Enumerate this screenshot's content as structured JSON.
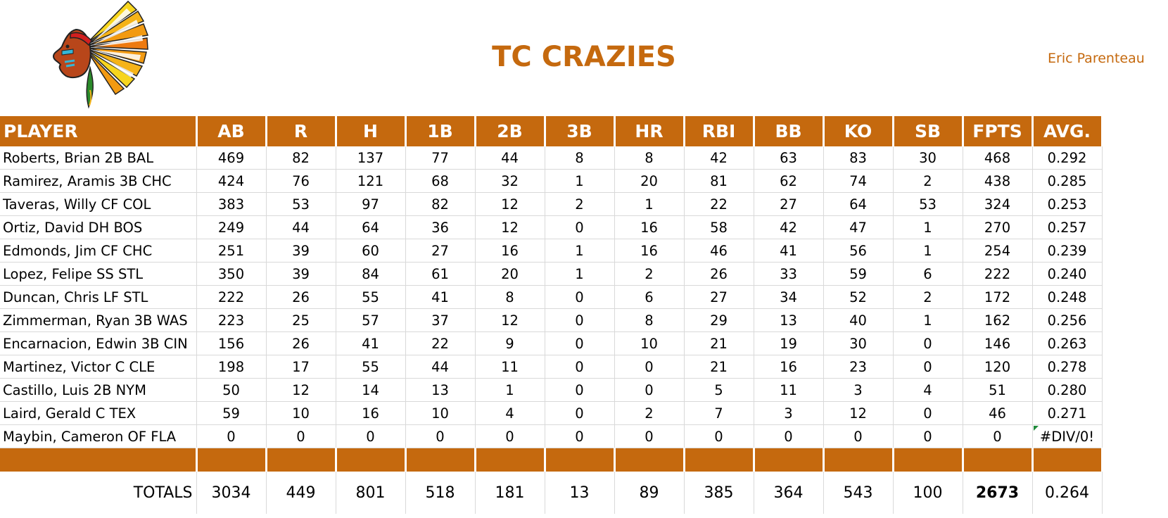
{
  "team": {
    "name": "TC CRAZIES",
    "owner": "Eric Parenteau",
    "accent_color": "#C5690E",
    "logo_icon": "chief-headdress-icon"
  },
  "table": {
    "headers": [
      "PLAYER",
      "AB",
      "R",
      "H",
      "1B",
      "2B",
      "3B",
      "HR",
      "RBI",
      "BB",
      "KO",
      "SB",
      "FPTS",
      "AVG."
    ],
    "rows": [
      [
        "Roberts, Brian 2B BAL",
        "469",
        "82",
        "137",
        "77",
        "44",
        "8",
        "8",
        "42",
        "63",
        "83",
        "30",
        "468",
        "0.292"
      ],
      [
        "Ramirez, Aramis 3B CHC",
        "424",
        "76",
        "121",
        "68",
        "32",
        "1",
        "20",
        "81",
        "62",
        "74",
        "2",
        "438",
        "0.285"
      ],
      [
        "Taveras, Willy CF COL",
        "383",
        "53",
        "97",
        "82",
        "12",
        "2",
        "1",
        "22",
        "27",
        "64",
        "53",
        "324",
        "0.253"
      ],
      [
        "Ortiz, David DH BOS",
        "249",
        "44",
        "64",
        "36",
        "12",
        "0",
        "16",
        "58",
        "42",
        "47",
        "1",
        "270",
        "0.257"
      ],
      [
        "Edmonds, Jim CF CHC",
        "251",
        "39",
        "60",
        "27",
        "16",
        "1",
        "16",
        "46",
        "41",
        "56",
        "1",
        "254",
        "0.239"
      ],
      [
        "Lopez, Felipe SS STL",
        "350",
        "39",
        "84",
        "61",
        "20",
        "1",
        "2",
        "26",
        "33",
        "59",
        "6",
        "222",
        "0.240"
      ],
      [
        "Duncan, Chris LF STL",
        "222",
        "26",
        "55",
        "41",
        "8",
        "0",
        "6",
        "27",
        "34",
        "52",
        "2",
        "172",
        "0.248"
      ],
      [
        "Zimmerman, Ryan 3B WAS",
        "223",
        "25",
        "57",
        "37",
        "12",
        "0",
        "8",
        "29",
        "13",
        "40",
        "1",
        "162",
        "0.256"
      ],
      [
        "Encarnacion, Edwin 3B CIN",
        "156",
        "26",
        "41",
        "22",
        "9",
        "0",
        "10",
        "21",
        "19",
        "30",
        "0",
        "146",
        "0.263"
      ],
      [
        "Martinez, Victor C CLE",
        "198",
        "17",
        "55",
        "44",
        "11",
        "0",
        "0",
        "21",
        "16",
        "23",
        "0",
        "120",
        "0.278"
      ],
      [
        "Castillo, Luis 2B NYM",
        "50",
        "12",
        "14",
        "13",
        "1",
        "0",
        "0",
        "5",
        "11",
        "3",
        "4",
        "51",
        "0.280"
      ],
      [
        "Laird, Gerald C TEX",
        "59",
        "10",
        "16",
        "10",
        "4",
        "0",
        "2",
        "7",
        "3",
        "12",
        "0",
        "46",
        "0.271"
      ],
      [
        "Maybin, Cameron OF FLA",
        "0",
        "0",
        "0",
        "0",
        "0",
        "0",
        "0",
        "0",
        "0",
        "0",
        "0",
        "0",
        "#DIV/0!"
      ]
    ],
    "totals": [
      "TOTALS",
      "3034",
      "449",
      "801",
      "518",
      "181",
      "13",
      "89",
      "385",
      "364",
      "543",
      "100",
      "2673",
      "0.264"
    ]
  }
}
